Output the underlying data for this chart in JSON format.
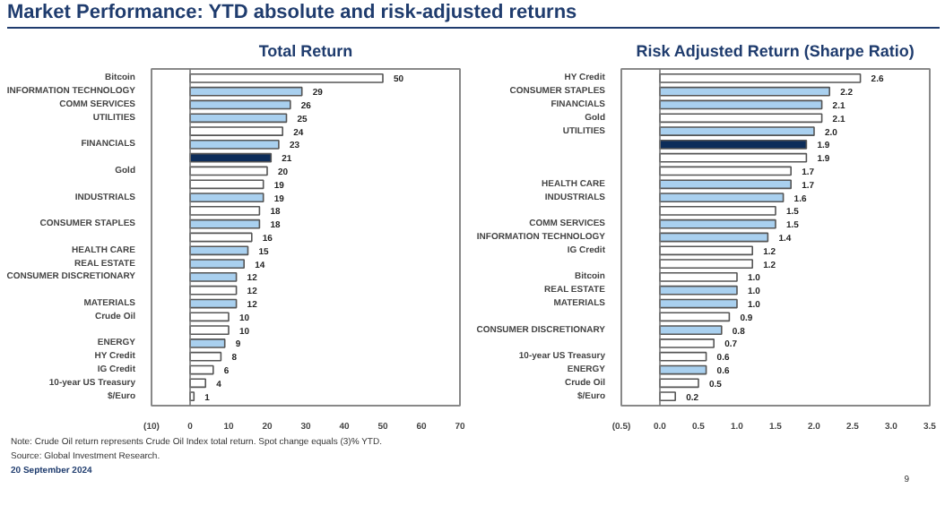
{
  "chart_data": [
    {
      "type": "bar",
      "orientation": "horizontal",
      "title": "Total Return",
      "grid": false,
      "ref_lines": [
        {
          "axis": "x",
          "value": 0
        }
      ],
      "categories": [
        "Bitcoin",
        "INFORMATION TECHNOLOGY",
        "COMM SERVICES",
        "UTILITIES",
        null,
        "FINANCIALS",
        null,
        "Gold",
        null,
        "INDUSTRIALS",
        null,
        "CONSUMER STAPLES",
        null,
        "HEALTH CARE",
        "REAL ESTATE",
        "CONSUMER DISCRETIONARY",
        null,
        "MATERIALS",
        "Crude Oil",
        null,
        "ENERGY",
        "HY Credit",
        "IG Credit",
        "10-year US Treasury",
        "$/Euro"
      ],
      "values": [
        50,
        29,
        26,
        25,
        24,
        23,
        21,
        20,
        19,
        19,
        18,
        18,
        16,
        15,
        14,
        12,
        12,
        12,
        10,
        10,
        9,
        8,
        6,
        4,
        1
      ],
      "value_labels": [
        "50",
        "29",
        "26",
        "25",
        "24",
        "23",
        "21",
        "20",
        "19",
        "19",
        "18",
        "18",
        "16",
        "15",
        "14",
        "12",
        "12",
        "12",
        "10",
        "10",
        "9",
        "8",
        "6",
        "4",
        "1"
      ],
      "colors": [
        "#ffffff",
        "#a9d0ef",
        "#a9d0ef",
        "#a9d0ef",
        "#ffffff",
        "#a9d0ef",
        "#0d2d5a",
        "#ffffff",
        "#ffffff",
        "#a9d0ef",
        "#ffffff",
        "#a9d0ef",
        "#ffffff",
        "#a9d0ef",
        "#a9d0ef",
        "#a9d0ef",
        "#ffffff",
        "#a9d0ef",
        "#ffffff",
        "#ffffff",
        "#a9d0ef",
        "#ffffff",
        "#ffffff",
        "#ffffff",
        "#ffffff"
      ],
      "xlim": [
        -10,
        70
      ],
      "xticks": [
        {
          "value": -10,
          "label": "(10)"
        },
        0,
        10,
        20,
        30,
        40,
        50,
        60,
        70
      ],
      "annotations": [
        "Market Performance: YTD absolute and risk-adjusted returns",
        "Note: Crude Oil return represents Crude Oil Index total return. Spot change equals (3)% YTD.",
        "Source: Global Investment Research.",
        "20 September 2024",
        "9"
      ]
    },
    {
      "type": "bar",
      "orientation": "horizontal",
      "title": "Risk Adjusted Return (Sharpe Ratio)",
      "grid": false,
      "ref_lines": [
        {
          "axis": "x",
          "value": 0
        }
      ],
      "categories": [
        "HY Credit",
        "CONSUMER STAPLES",
        "FINANCIALS",
        "Gold",
        "UTILITIES",
        null,
        null,
        null,
        "HEALTH CARE",
        "INDUSTRIALS",
        null,
        "COMM SERVICES",
        "INFORMATION TECHNOLOGY",
        "IG Credit",
        null,
        "Bitcoin",
        "REAL ESTATE",
        "MATERIALS",
        null,
        "CONSUMER DISCRETIONARY",
        null,
        "10-year US Treasury",
        "ENERGY",
        "Crude Oil",
        "$/Euro"
      ],
      "values": [
        2.6,
        2.2,
        2.1,
        2.1,
        2.0,
        1.9,
        1.9,
        1.7,
        1.7,
        1.6,
        1.5,
        1.5,
        1.4,
        1.2,
        1.2,
        1.0,
        1.0,
        1.0,
        0.9,
        0.8,
        0.7,
        0.6,
        0.6,
        0.5,
        0.2
      ],
      "value_labels": [
        "2.6",
        "2.2",
        "2.1",
        "2.1",
        "2.0",
        "1.9",
        "1.9",
        "1.7",
        "1.7",
        "1.6",
        "1.5",
        "1.5",
        "1.4",
        "1.2",
        "1.2",
        "1.0",
        "1.0",
        "1.0",
        "0.9",
        "0.8",
        "0.7",
        "0.6",
        "0.6",
        "0.5",
        "0.2"
      ],
      "colors": [
        "#ffffff",
        "#a9d0ef",
        "#a9d0ef",
        "#ffffff",
        "#a9d0ef",
        "#0d2d5a",
        "#ffffff",
        "#ffffff",
        "#a9d0ef",
        "#a9d0ef",
        "#ffffff",
        "#a9d0ef",
        "#a9d0ef",
        "#ffffff",
        "#ffffff",
        "#ffffff",
        "#a9d0ef",
        "#a9d0ef",
        "#ffffff",
        "#a9d0ef",
        "#ffffff",
        "#ffffff",
        "#a9d0ef",
        "#ffffff",
        "#ffffff"
      ],
      "xlim": [
        -0.5,
        3.5
      ],
      "xticks": [
        {
          "value": -0.5,
          "label": "(0.5)"
        },
        {
          "value": 0,
          "label": "0.0"
        },
        {
          "value": 0.5,
          "label": "0.5"
        },
        {
          "value": 1,
          "label": "1.0"
        },
        {
          "value": 1.5,
          "label": "1.5"
        },
        {
          "value": 2,
          "label": "2.0"
        },
        {
          "value": 2.5,
          "label": "2.5"
        },
        {
          "value": 3,
          "label": "3.0"
        },
        {
          "value": 3.5,
          "label": "3.5"
        }
      ]
    }
  ]
}
